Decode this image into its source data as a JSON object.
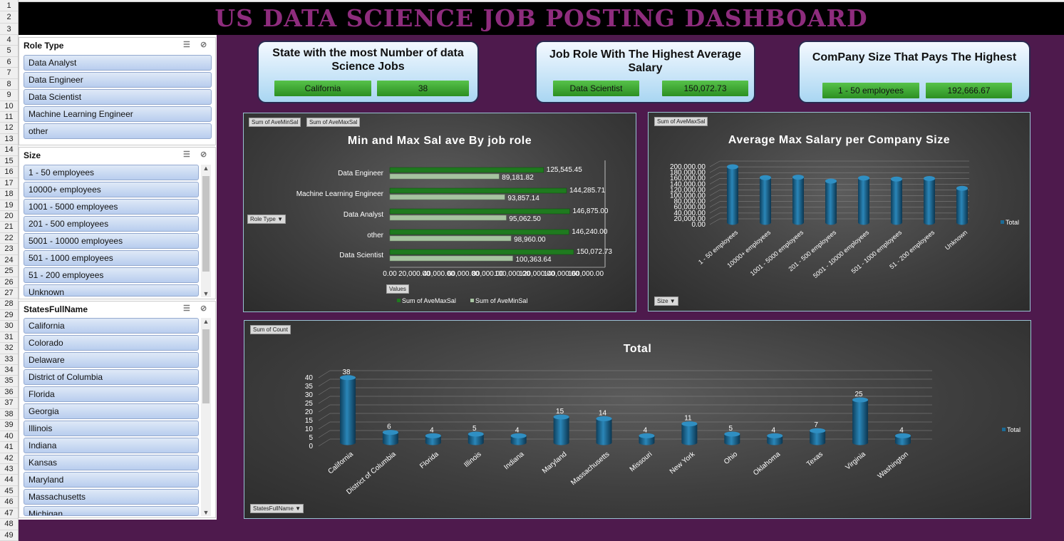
{
  "title": "US DATA SCIENCE JOB POSTING DASHBOARD",
  "row_numbers": [
    "1",
    "2",
    "3",
    "4",
    "5",
    "6",
    "7",
    "8",
    "9",
    "10",
    "11",
    "12",
    "13",
    "14",
    "15",
    "16",
    "17",
    "18",
    "19",
    "20",
    "21",
    "22",
    "23",
    "24",
    "25",
    "26",
    "27",
    "28",
    "29",
    "30",
    "31",
    "32",
    "33",
    "34",
    "35",
    "36",
    "37",
    "38",
    "39",
    "40",
    "41",
    "42",
    "43",
    "44",
    "45",
    "46",
    "47",
    "48",
    "49"
  ],
  "slicers": {
    "role": {
      "header": "Role Type",
      "items": [
        "Data Analyst",
        "Data Engineer",
        "Data Scientist",
        "Machine Learning Engineer",
        "other"
      ]
    },
    "size": {
      "header": "Size",
      "items": [
        "1  -  50 employees",
        "10000+ employees",
        "1001  -  5000 employees",
        "201  -  500 employees",
        "5001  -  10000 employees",
        "501  -  1000 employees",
        "51  -  200 employees",
        "Unknown"
      ]
    },
    "states": {
      "header": "StatesFullName",
      "items": [
        "California",
        "Colorado",
        "Delaware",
        "District of Columbia",
        "Florida",
        "Georgia",
        "Illinois",
        "Indiana",
        "Kansas",
        "Maryland",
        "Massachusetts",
        "Michigan"
      ]
    }
  },
  "kpis": [
    {
      "title": "State with the most Number of data Science Jobs",
      "label": "California",
      "value": "38"
    },
    {
      "title": "Job Role With The Highest Average Salary",
      "label": "Data Scientist",
      "value": "150,072.73"
    },
    {
      "title": "ComPany Size That Pays The Highest",
      "label": "1  -  50 employees",
      "value": "192,666.67"
    }
  ],
  "colors": {
    "bg": "#4e1a4d",
    "banner_text": "#8e2c7d",
    "bar_dark_green": "#1f7a1f",
    "bar_light_green": "#a6c3a0",
    "cyl_blue": "#1b6b96",
    "kpi_button_green": "#3fa634"
  },
  "chart_data": [
    {
      "type": "bar",
      "orientation": "horizontal",
      "title": "Min and Max Sal ave By job role",
      "buttons": [
        "Sum of AveMinSal",
        "Sum of AveMaxSal",
        "Role Type",
        "Values"
      ],
      "categories": [
        "Data Engineer",
        "Machine Learning Engineer",
        "Data Analyst",
        "other",
        "Data Scientist"
      ],
      "series": [
        {
          "name": "Sum of AveMaxSal",
          "values": [
            125545.45,
            144285.71,
            146875.0,
            146240.0,
            150072.73
          ],
          "labels": [
            "125,545.45",
            "144,285.71",
            "146,875.00",
            "146,240.00",
            "150,072.73"
          ],
          "color": "#1f7a1f"
        },
        {
          "name": "Sum of AveMinSal",
          "values": [
            89181.82,
            93857.14,
            95062.5,
            98960.0,
            100363.64
          ],
          "labels": [
            "89,181.82",
            "93,857.14",
            "95,062.50",
            "98,960.00",
            "100,363.64"
          ],
          "color": "#a6c3a0"
        }
      ],
      "xticks": [
        "0.00",
        "20,000.00",
        "40,000.00",
        "60,000.00",
        "80,000.00",
        "100,000.00",
        "120,000.00",
        "140,000.00",
        "160,000.00"
      ],
      "xlim": [
        0,
        160000
      ],
      "legend": "bottom"
    },
    {
      "type": "bar",
      "style": "3d-cylinder",
      "title": "Average Max Salary per Company Size",
      "buttons": [
        "Sum of AveMaxSal",
        "Size"
      ],
      "categories": [
        "1  -  50 employees",
        "10000+ employees",
        "1001  -  5000 employees",
        "201  -  500 employees",
        "5001  -  10000 employees",
        "501  -  1000 employees",
        "51  -  200 employees",
        "Unknown"
      ],
      "series": [
        {
          "name": "Total",
          "values": [
            192666.67,
            155000,
            156500,
            143000,
            153500,
            150000,
            152000,
            118000
          ]
        }
      ],
      "yticks": [
        "0.00",
        "20,000.00",
        "40,000.00",
        "60,000.00",
        "80,000.00",
        "100,000.00",
        "120,000.00",
        "140,000.00",
        "160,000.00",
        "180,000.00",
        "200,000.00"
      ],
      "ylim": [
        0,
        200000
      ],
      "legend": "right"
    },
    {
      "type": "bar",
      "style": "3d-cylinder",
      "title": "Total",
      "buttons": [
        "Sum of Count",
        "StatesFullName"
      ],
      "categories": [
        "California",
        "District of Columbia",
        "Florida",
        "Illinois",
        "Indiana",
        "Maryland",
        "Massachusetts",
        "Missouri",
        "New York",
        "Ohio",
        "Oklahoma",
        "Texas",
        "Virginia",
        "Washington"
      ],
      "series": [
        {
          "name": "Total",
          "values": [
            38,
            6,
            4,
            5,
            4,
            15,
            14,
            4,
            11,
            5,
            4,
            7,
            25,
            4
          ]
        }
      ],
      "yticks": [
        "0",
        "5",
        "10",
        "15",
        "20",
        "25",
        "30",
        "35",
        "40"
      ],
      "ylim": [
        0,
        40
      ],
      "legend": "right"
    }
  ]
}
